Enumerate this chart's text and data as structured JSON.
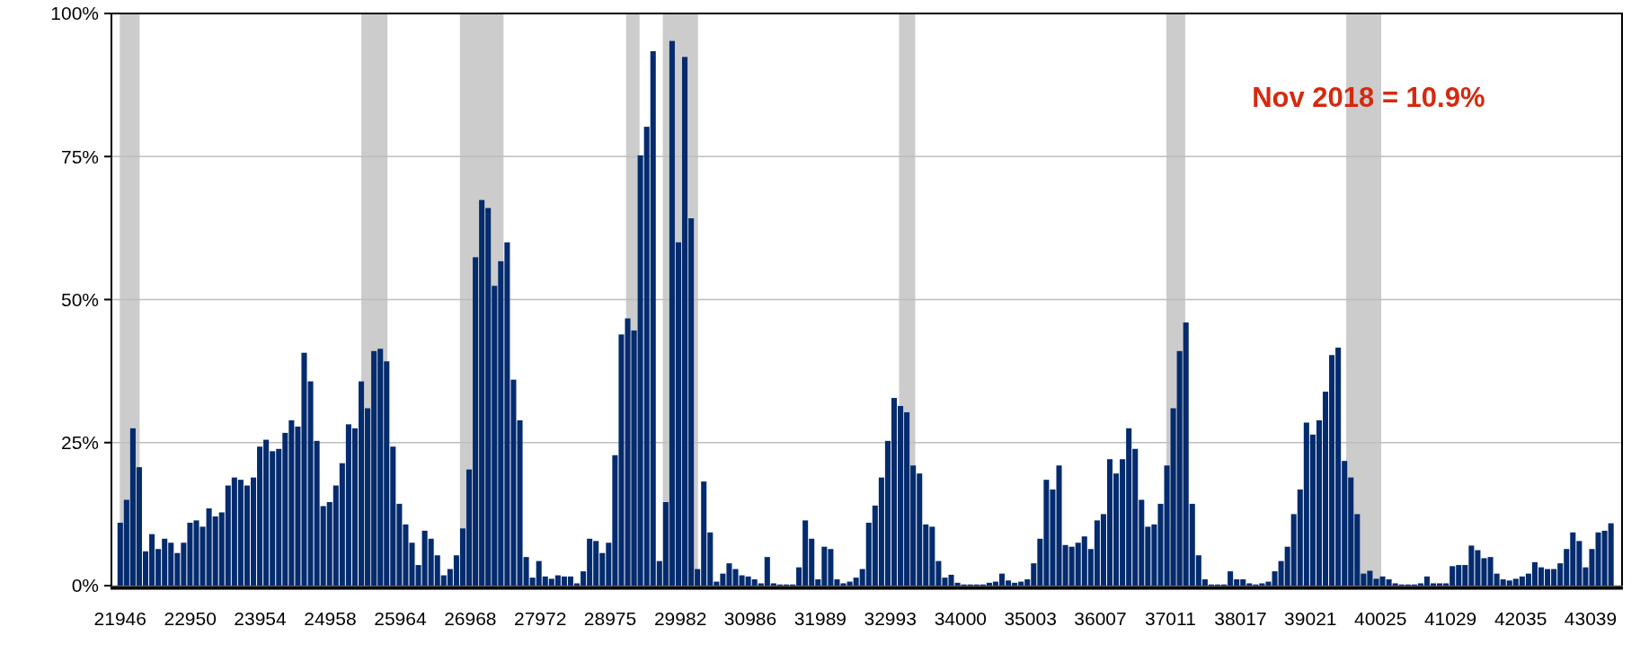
{
  "chart_data": {
    "type": "bar",
    "color": "#032b6e",
    "x": [
      21946,
      22037,
      22128,
      22219,
      22310,
      22401,
      22492,
      22583,
      22674,
      22765,
      22856,
      22947,
      23038,
      23129,
      23220,
      23311,
      23402,
      23493,
      23584,
      23675,
      23766,
      23857,
      23948,
      24039,
      24130,
      24221,
      24312,
      24403,
      24494,
      24585,
      24676,
      24767,
      24858,
      24949,
      25040,
      25131,
      25222,
      25313,
      25404,
      25495,
      25586,
      25677,
      25768,
      25859,
      25950,
      26041,
      26132,
      26223,
      26314,
      26405,
      26496,
      26587,
      26678,
      26769,
      26860,
      26951,
      27042,
      27133,
      27224,
      27315,
      27406,
      27497,
      27588,
      27679,
      27770,
      27861,
      27952,
      28043,
      28134,
      28225,
      28316,
      28407,
      28498,
      28589,
      28680,
      28771,
      28862,
      28953,
      29044,
      29135,
      29226,
      29317,
      29408,
      29499,
      29590,
      29681,
      29772,
      29863,
      29954,
      30045,
      30136,
      30227,
      30318,
      30409,
      30500,
      30591,
      30682,
      30773,
      30864,
      30955,
      31046,
      31137,
      31228,
      31319,
      31410,
      31501,
      31592,
      31683,
      31774,
      31865,
      31956,
      32047,
      32138,
      32229,
      32320,
      32411,
      32502,
      32593,
      32684,
      32775,
      32866,
      32957,
      33048,
      33139,
      33230,
      33321,
      33412,
      33503,
      33594,
      33685,
      33776,
      33867,
      33958,
      34049,
      34140,
      34231,
      34322,
      34413,
      34504,
      34595,
      34686,
      34777,
      34868,
      34959,
      35050,
      35141,
      35232,
      35323,
      35414,
      35505,
      35596,
      35687,
      35778,
      35869,
      35960,
      36051,
      36142,
      36233,
      36324,
      36415,
      36506,
      36597,
      36688,
      36779,
      36870,
      36961,
      37052,
      37143,
      37234,
      37325,
      37416,
      37507,
      37598,
      37689,
      37780,
      37871,
      37962,
      38053,
      38144,
      38235,
      38326,
      38417,
      38508,
      38599,
      38690,
      38781,
      38872,
      38963,
      39054,
      39145,
      39236,
      39327,
      39418,
      39509,
      39600,
      39691,
      39782,
      39873,
      39964,
      40055,
      40146,
      40237,
      40328,
      40419,
      40510,
      40601,
      40692,
      40783,
      40874,
      40965,
      41056,
      41147,
      41238,
      41329,
      41420,
      41511,
      41602,
      41693,
      41784,
      41875,
      41966,
      42057,
      42148,
      42239,
      42330,
      42421,
      42512,
      42603,
      42694,
      42785,
      42876,
      42967,
      43058,
      43149,
      43240,
      43331
    ],
    "values": [
      11,
      15,
      27.5,
      20.7,
      6,
      9,
      6.4,
      8.2,
      7.5,
      5.7,
      7.5,
      11,
      11.4,
      10.3,
      13.5,
      12.1,
      12.8,
      17.5,
      18.9,
      18.5,
      17.5,
      18.9,
      24.3,
      25.5,
      23.5,
      23.9,
      26.7,
      28.9,
      27.8,
      40.7,
      35.7,
      25.3,
      13.9,
      14.6,
      17.5,
      21.4,
      28.2,
      27.5,
      35.7,
      31,
      41,
      41.4,
      39.2,
      24.3,
      14.3,
      10.7,
      7.5,
      3.6,
      9.6,
      8.2,
      5.3,
      1.8,
      2.9,
      5.3,
      10,
      20.3,
      57.4,
      67.4,
      66,
      52.4,
      56.7,
      60,
      36,
      28.9,
      5,
      1.4,
      4.3,
      1.6,
      1.2,
      1.8,
      1.6,
      1.6,
      0.4,
      2.5,
      8.2,
      7.8,
      5.7,
      7.5,
      22.8,
      43.9,
      46.7,
      44.6,
      75.2,
      80.2,
      93.4,
      4.3,
      14.6,
      95.2,
      60,
      92.4,
      64.2,
      2.9,
      18.2,
      9.3,
      0.7,
      2.1,
      3.9,
      2.9,
      1.8,
      1.6,
      1.1,
      0.4,
      5,
      0.4,
      0.2,
      0.2,
      0.2,
      3.2,
      11.4,
      8.2,
      1.1,
      6.8,
      6.4,
      1.1,
      0.4,
      0.7,
      1.4,
      2.9,
      11,
      14,
      18.9,
      25.3,
      32.8,
      31.4,
      30.3,
      21,
      19.6,
      10.7,
      10.3,
      4.3,
      1.4,
      1.9,
      0.5,
      0.2,
      0.2,
      0.2,
      0.2,
      0.5,
      0.7,
      2.1,
      0.9,
      0.5,
      0.7,
      1.1,
      3.9,
      8.2,
      18.5,
      16.8,
      21,
      7.1,
      6.8,
      7.5,
      8.6,
      6.4,
      11.4,
      12.5,
      22.1,
      19.6,
      22.1,
      27.5,
      23.9,
      15,
      10.3,
      10.7,
      14.3,
      21,
      31,
      41,
      46,
      14.3,
      5.3,
      1.1,
      0.2,
      0.2,
      0.2,
      2.5,
      1.1,
      1.1,
      0.4,
      0.2,
      0.4,
      0.7,
      2.5,
      4.3,
      6.8,
      12.5,
      16.8,
      28.5,
      26.4,
      28.9,
      33.9,
      40.3,
      41.6,
      21.8,
      18.9,
      12.5,
      2.1,
      2.6,
      1.2,
      1.6,
      1.1,
      0.4,
      0.2,
      0.2,
      0.2,
      0.4,
      1.6,
      0.4,
      0.4,
      0.4,
      3.4,
      3.6,
      3.6,
      7,
      6.2,
      4.8,
      5,
      2.1,
      1.1,
      0.9,
      1.2,
      1.6,
      2.1,
      4.1,
      3.2,
      2.9,
      2.9,
      3.9,
      6.4,
      9.3,
      7.8,
      3.2,
      6.4,
      9.3,
      9.6,
      10.9
    ],
    "xlim": [
      21820,
      43490
    ],
    "xticks": [
      21946,
      22950,
      23954,
      24958,
      25964,
      26968,
      27972,
      28975,
      29982,
      30986,
      31989,
      32993,
      34000,
      35003,
      36007,
      37011,
      38017,
      39021,
      40025,
      41029,
      42035,
      43039
    ],
    "ylim": [
      0,
      100
    ],
    "yticks": [
      {
        "value": 0,
        "label": "0%"
      },
      {
        "value": 25,
        "label": "25%"
      },
      {
        "value": 50,
        "label": "50%"
      },
      {
        "value": 75,
        "label": "75%"
      },
      {
        "value": 100,
        "label": "100%"
      }
    ],
    "grid": "y",
    "bands": [
      {
        "axis": "x",
        "from": 21940,
        "to": 22225,
        "color": "#cccccc"
      },
      {
        "axis": "x",
        "from": 25405,
        "to": 25780,
        "color": "#cccccc"
      },
      {
        "axis": "x",
        "from": 26820,
        "to": 27445,
        "color": "#cccccc"
      },
      {
        "axis": "x",
        "from": 29203,
        "to": 29396,
        "color": "#cccccc"
      },
      {
        "axis": "x",
        "from": 29729,
        "to": 30234,
        "color": "#cccccc"
      },
      {
        "axis": "x",
        "from": 33118,
        "to": 33351,
        "color": "#cccccc"
      },
      {
        "axis": "x",
        "from": 36954,
        "to": 37224,
        "color": "#cccccc"
      },
      {
        "axis": "x",
        "from": 39533,
        "to": 40036,
        "color": "#cccccc"
      }
    ],
    "annotations": [
      "Nov 2018 = 10.9%"
    ]
  }
}
